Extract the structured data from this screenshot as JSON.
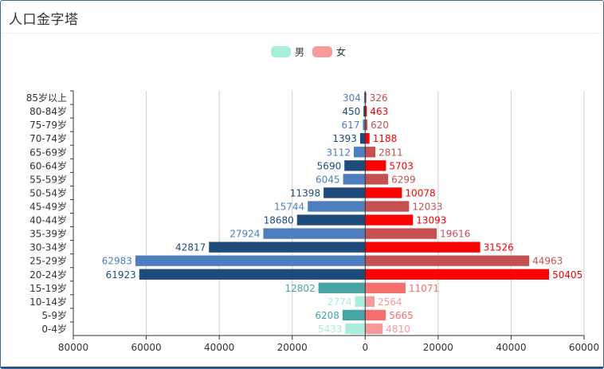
{
  "panel": {
    "title": "人口金字塔"
  },
  "legend": [
    {
      "label": "男",
      "color": "#a8eedd"
    },
    {
      "label": "女",
      "color": "#f99a9a"
    }
  ],
  "chart_data": {
    "type": "bar",
    "orientation": "horizontal-diverging",
    "categories": [
      "85岁以上",
      "80-84岁",
      "75-79岁",
      "70-74岁",
      "65-69岁",
      "60-64岁",
      "55-59岁",
      "50-54岁",
      "45-49岁",
      "40-44岁",
      "35-39岁",
      "30-34岁",
      "25-29岁",
      "20-24岁",
      "15-19岁",
      "10-14岁",
      "5-9岁",
      "0-4岁"
    ],
    "series": [
      {
        "name": "男",
        "values": [
          304,
          450,
          617,
          1393,
          3112,
          5690,
          6045,
          11398,
          15744,
          18680,
          27924,
          42817,
          62983,
          61923,
          12802,
          2774,
          6208,
          5433
        ],
        "colors": [
          "#4f7ebf",
          "#1e4a7c",
          "#4f7ebf",
          "#1e4a7c",
          "#4f7ebf",
          "#1e4a7c",
          "#4f7ebf",
          "#1e4a7c",
          "#4f7ebf",
          "#1e4a7c",
          "#4f7ebf",
          "#1e4a7c",
          "#4f7ebf",
          "#1e4a7c",
          "#48a3a5",
          "#a8eedd",
          "#48a3a5",
          "#a8eedd"
        ]
      },
      {
        "name": "女",
        "values": [
          326,
          463,
          620,
          1188,
          2811,
          5703,
          6299,
          10078,
          12033,
          13093,
          19616,
          31526,
          44963,
          50405,
          11071,
          2564,
          5665,
          4810
        ],
        "colors": [
          "#c45050",
          "#ff0000",
          "#c45050",
          "#ff0000",
          "#c45050",
          "#ff0000",
          "#c45050",
          "#ff0000",
          "#c45050",
          "#ff0000",
          "#c45050",
          "#ff0000",
          "#c45050",
          "#ff0000",
          "#f56f6f",
          "#f99a9a",
          "#f56f6f",
          "#f99a9a"
        ]
      }
    ],
    "xlim": [
      -80000,
      60000
    ],
    "xticks": [
      -80000,
      -60000,
      -40000,
      -20000,
      0,
      20000,
      40000,
      60000
    ],
    "xtick_labels": [
      "80000",
      "60000",
      "40000",
      "20000",
      "0",
      "20000",
      "40000",
      "60000"
    ],
    "grid": true,
    "legend_position": "top-center"
  }
}
